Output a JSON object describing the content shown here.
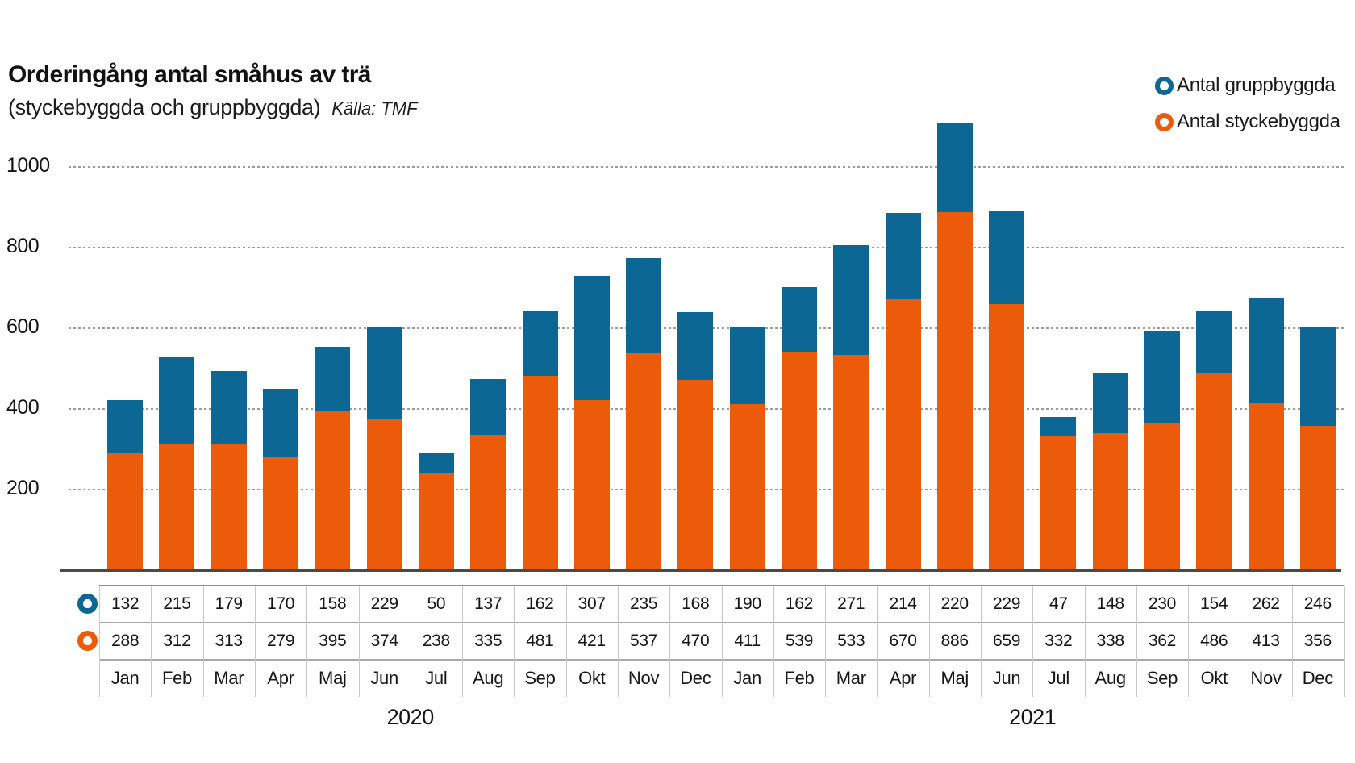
{
  "header": {
    "title": "Orderingång antal småhus av trä",
    "subtitle": "(styckebyggda och gruppbyggda)",
    "source": "Källa: TMF"
  },
  "legend": {
    "items": [
      {
        "label": "Antal gruppbyggda",
        "color": "#0D6795",
        "icon": "ring-icon"
      },
      {
        "label": "Antal styckebyggda",
        "color": "#EC5B0A",
        "icon": "ring-icon"
      }
    ]
  },
  "palette": {
    "gruppbyggda_blue": "#0D6795",
    "styckebyggda_orange": "#EC5B0A",
    "axis_line": "#4a4a4a",
    "gridline": "#9b9b9b",
    "table_border": "#a9a9a9"
  },
  "chart_data": {
    "type": "bar",
    "stacked": true,
    "title": "Orderingång antal småhus av trä (styckebyggda och gruppbyggda)",
    "source": "Källa: TMF",
    "categories": [
      "Jan",
      "Feb",
      "Mar",
      "Apr",
      "Maj",
      "Jun",
      "Jul",
      "Aug",
      "Sep",
      "Okt",
      "Nov",
      "Dec",
      "Jan",
      "Feb",
      "Mar",
      "Apr",
      "Maj",
      "Jun",
      "Jul",
      "Aug",
      "Sep",
      "Okt",
      "Nov",
      "Dec"
    ],
    "year_groups": [
      {
        "label": "2020",
        "start": 0,
        "end": 11
      },
      {
        "label": "2021",
        "start": 12,
        "end": 23
      }
    ],
    "series": [
      {
        "name": "Antal gruppbyggda",
        "color": "#0D6795",
        "stack_position": "top",
        "values": [
          132,
          215,
          179,
          170,
          158,
          229,
          50,
          137,
          162,
          307,
          235,
          168,
          190,
          162,
          271,
          214,
          220,
          229,
          47,
          148,
          230,
          154,
          262,
          246
        ]
      },
      {
        "name": "Antal styckebyggda",
        "color": "#EC5B0A",
        "stack_position": "bottom",
        "values": [
          288,
          312,
          313,
          279,
          395,
          374,
          238,
          335,
          481,
          421,
          537,
          470,
          411,
          539,
          533,
          670,
          886,
          659,
          332,
          338,
          362,
          486,
          413,
          356
        ]
      }
    ],
    "ylim": [
      0,
      1100
    ],
    "yticks": [
      200,
      400,
      600,
      800,
      1000
    ],
    "grid": "horizontal-dashed",
    "legend_position": "top-right",
    "value_table_shown": true
  }
}
